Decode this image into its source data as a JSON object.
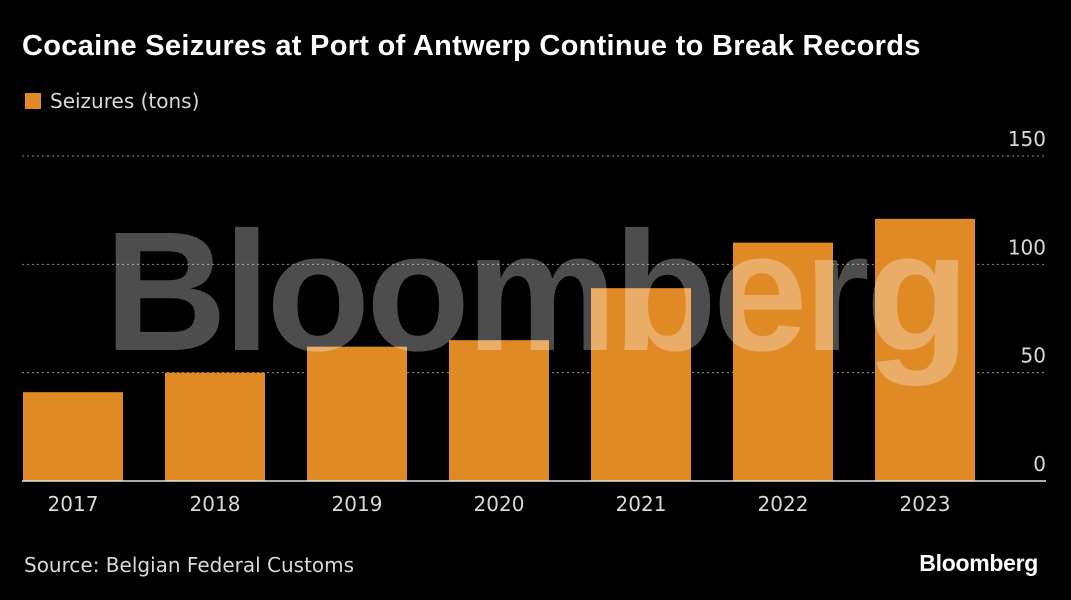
{
  "title": "Cocaine Seizures at Port of Antwerp Continue to Break Records",
  "source": "Source: Belgian Federal Customs",
  "brand": "Bloomberg",
  "watermark": "Bloomberg",
  "colors": {
    "background": "#000000",
    "bar": "#e08a26",
    "grid": "#8c8c8c",
    "axis_text": "#d9d9d9",
    "watermark": "#ffffff"
  },
  "chart_data": {
    "type": "bar",
    "title": "Cocaine Seizures at Port of Antwerp Continue to Break Records",
    "categories": [
      "2017",
      "2018",
      "2019",
      "2020",
      "2021",
      "2022",
      "2023"
    ],
    "series": [
      {
        "name": "Seizures (tons)",
        "values": [
          41,
          50,
          62,
          65,
          89,
          110,
          121
        ]
      }
    ],
    "ylim": [
      0,
      150
    ],
    "yticks": [
      0,
      50,
      100,
      150
    ],
    "grid": true,
    "legend": "top-left",
    "xlabel": "",
    "ylabel": ""
  }
}
